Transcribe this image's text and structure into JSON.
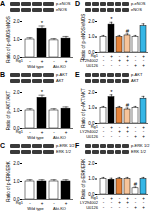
{
  "chart_data": [
    {
      "type": "bar",
      "title": "A",
      "bands": [
        "p-eNOS",
        "eNOS"
      ],
      "ylabel": "Ratio of p-eNOS/eNOS",
      "categories": [
        null,
        null,
        null,
        null
      ],
      "values": [
        1.0,
        1.6,
        0.95,
        1.05
      ],
      "errors": [
        0.1,
        0.15,
        0.1,
        0.12
      ],
      "colors": [
        "#ffffff",
        "#000000",
        "#ffffff",
        "#000000"
      ],
      "ylim": [
        0,
        2
      ],
      "yticks": [
        0,
        1,
        2
      ],
      "x_rows": [
        {
          "label": "Rg1",
          "signs": [
            "-",
            "+",
            "-",
            "+"
          ]
        }
      ],
      "groups": [
        {
          "label": "Wild type",
          "span": [
            0,
            1
          ]
        },
        {
          "label": "Akt-KO",
          "span": [
            2,
            3
          ]
        }
      ],
      "annotations": [
        {
          "index": 1,
          "text": "*"
        }
      ]
    },
    {
      "type": "bar",
      "title": "B",
      "bands": [
        "p-AKT",
        "AKT"
      ],
      "ylabel": "Ratio of p-AKT/AKT",
      "categories": [
        null,
        null,
        null,
        null
      ],
      "values": [
        1.0,
        1.7,
        1.0,
        1.1
      ],
      "errors": [
        0.1,
        0.15,
        0.1,
        0.1
      ],
      "colors": [
        "#ffffff",
        "#000000",
        "#ffffff",
        "#000000"
      ],
      "ylim": [
        0,
        2
      ],
      "yticks": [
        0,
        1,
        2
      ],
      "x_rows": [
        {
          "label": "Rg1",
          "signs": [
            "-",
            "+",
            "-",
            "+"
          ]
        }
      ],
      "groups": [
        {
          "label": "Wild type",
          "span": [
            0,
            1
          ]
        },
        {
          "label": "Akt-KO",
          "span": [
            2,
            3
          ]
        }
      ],
      "annotations": [
        {
          "index": 1,
          "text": "*"
        }
      ]
    },
    {
      "type": "bar",
      "title": "C",
      "bands": [
        "p-ERK 1/2",
        "ERK 1/2"
      ],
      "ylabel": "Ratio of p-ERK/ERK",
      "categories": [
        null,
        null,
        null,
        null
      ],
      "values": [
        1.0,
        1.0,
        1.0,
        1.0
      ],
      "errors": [
        0.1,
        0.1,
        0.1,
        0.1
      ],
      "colors": [
        "#ffffff",
        "#000000",
        "#ffffff",
        "#000000"
      ],
      "ylim": [
        0,
        2
      ],
      "yticks": [
        0,
        1,
        2
      ],
      "x_rows": [
        {
          "label": "Rg1",
          "signs": [
            "-",
            "+",
            "-",
            "+"
          ]
        }
      ],
      "groups": [
        {
          "label": "Wild type",
          "span": [
            0,
            1
          ]
        },
        {
          "label": "Akt-KO",
          "span": [
            2,
            3
          ]
        }
      ],
      "annotations": []
    },
    {
      "type": "bar",
      "title": "D",
      "bands": [
        "p-eNOS",
        "eNOS"
      ],
      "ylabel": "Ratio of p-eNOS/eNOS",
      "categories": [
        null,
        null,
        null,
        null,
        null,
        null
      ],
      "values": [
        1.0,
        1.8,
        1.0,
        1.1,
        1.0,
        1.7
      ],
      "errors": [
        0.1,
        0.15,
        0.1,
        0.1,
        0.1,
        0.15
      ],
      "colors": [
        "#ffffff",
        "#000000",
        "#e8843a",
        "#f6c49a",
        "#ffffff",
        "#35b6e6"
      ],
      "ylim": [
        0,
        2
      ],
      "yticks": [
        0,
        1,
        2
      ],
      "x_rows": [
        {
          "label": "Rg1",
          "signs": [
            "-",
            "+",
            "-",
            "+",
            "-",
            "+"
          ]
        },
        {
          "label": "LY294002",
          "signs": [
            "-",
            "-",
            "+",
            "+",
            "-",
            "-"
          ]
        },
        {
          "label": "U0126",
          "signs": [
            "-",
            "-",
            "-",
            "-",
            "+",
            "+"
          ]
        }
      ],
      "annotations": [
        {
          "index": 1,
          "text": "*"
        },
        {
          "index": 3,
          "text": "#"
        }
      ]
    },
    {
      "type": "bar",
      "title": "E",
      "bands": [
        "p-AKT",
        "AKT"
      ],
      "ylabel": "Ratio of p-AKT/AKT",
      "categories": [
        null,
        null,
        null,
        null,
        null,
        null
      ],
      "values": [
        1.0,
        1.7,
        1.0,
        0.9,
        1.0,
        1.6
      ],
      "errors": [
        0.1,
        0.15,
        0.1,
        0.1,
        0.1,
        0.15
      ],
      "colors": [
        "#ffffff",
        "#000000",
        "#e8843a",
        "#f6c49a",
        "#ffffff",
        "#35b6e6"
      ],
      "ylim": [
        0,
        2
      ],
      "yticks": [
        0,
        1,
        2
      ],
      "x_rows": [
        {
          "label": "Rg1",
          "signs": [
            "-",
            "+",
            "-",
            "+",
            "-",
            "+"
          ]
        },
        {
          "label": "LY294002",
          "signs": [
            "-",
            "-",
            "+",
            "+",
            "-",
            "-"
          ]
        },
        {
          "label": "U0126",
          "signs": [
            "-",
            "-",
            "-",
            "-",
            "+",
            "+"
          ]
        }
      ],
      "annotations": [
        {
          "index": 1,
          "text": "*"
        },
        {
          "index": 3,
          "text": "#"
        }
      ]
    },
    {
      "type": "bar",
      "title": "F",
      "bands": [
        "p-ERK 1/2",
        "ERK 1/2"
      ],
      "ylabel": "Ratio of p-ERK/ERK",
      "categories": [
        null,
        null,
        null,
        null,
        null,
        null
      ],
      "values": [
        1.0,
        0.95,
        1.0,
        1.0,
        0.4,
        1.0
      ],
      "errors": [
        0.1,
        0.1,
        0.1,
        0.1,
        0.08,
        0.1
      ],
      "colors": [
        "#ffffff",
        "#000000",
        "#e8843a",
        "#f6c49a",
        "#ffffff",
        "#35b6e6"
      ],
      "ylim": [
        0,
        2
      ],
      "yticks": [
        0,
        1,
        2
      ],
      "x_rows": [
        {
          "label": "Rg1",
          "signs": [
            "-",
            "+",
            "-",
            "+",
            "-",
            "+"
          ]
        },
        {
          "label": "LY294002",
          "signs": [
            "-",
            "-",
            "+",
            "+",
            "-",
            "-"
          ]
        },
        {
          "label": "U0126",
          "signs": [
            "-",
            "-",
            "-",
            "-",
            "+",
            "+"
          ]
        }
      ],
      "annotations": [
        {
          "index": 4,
          "text": "#"
        }
      ]
    }
  ]
}
